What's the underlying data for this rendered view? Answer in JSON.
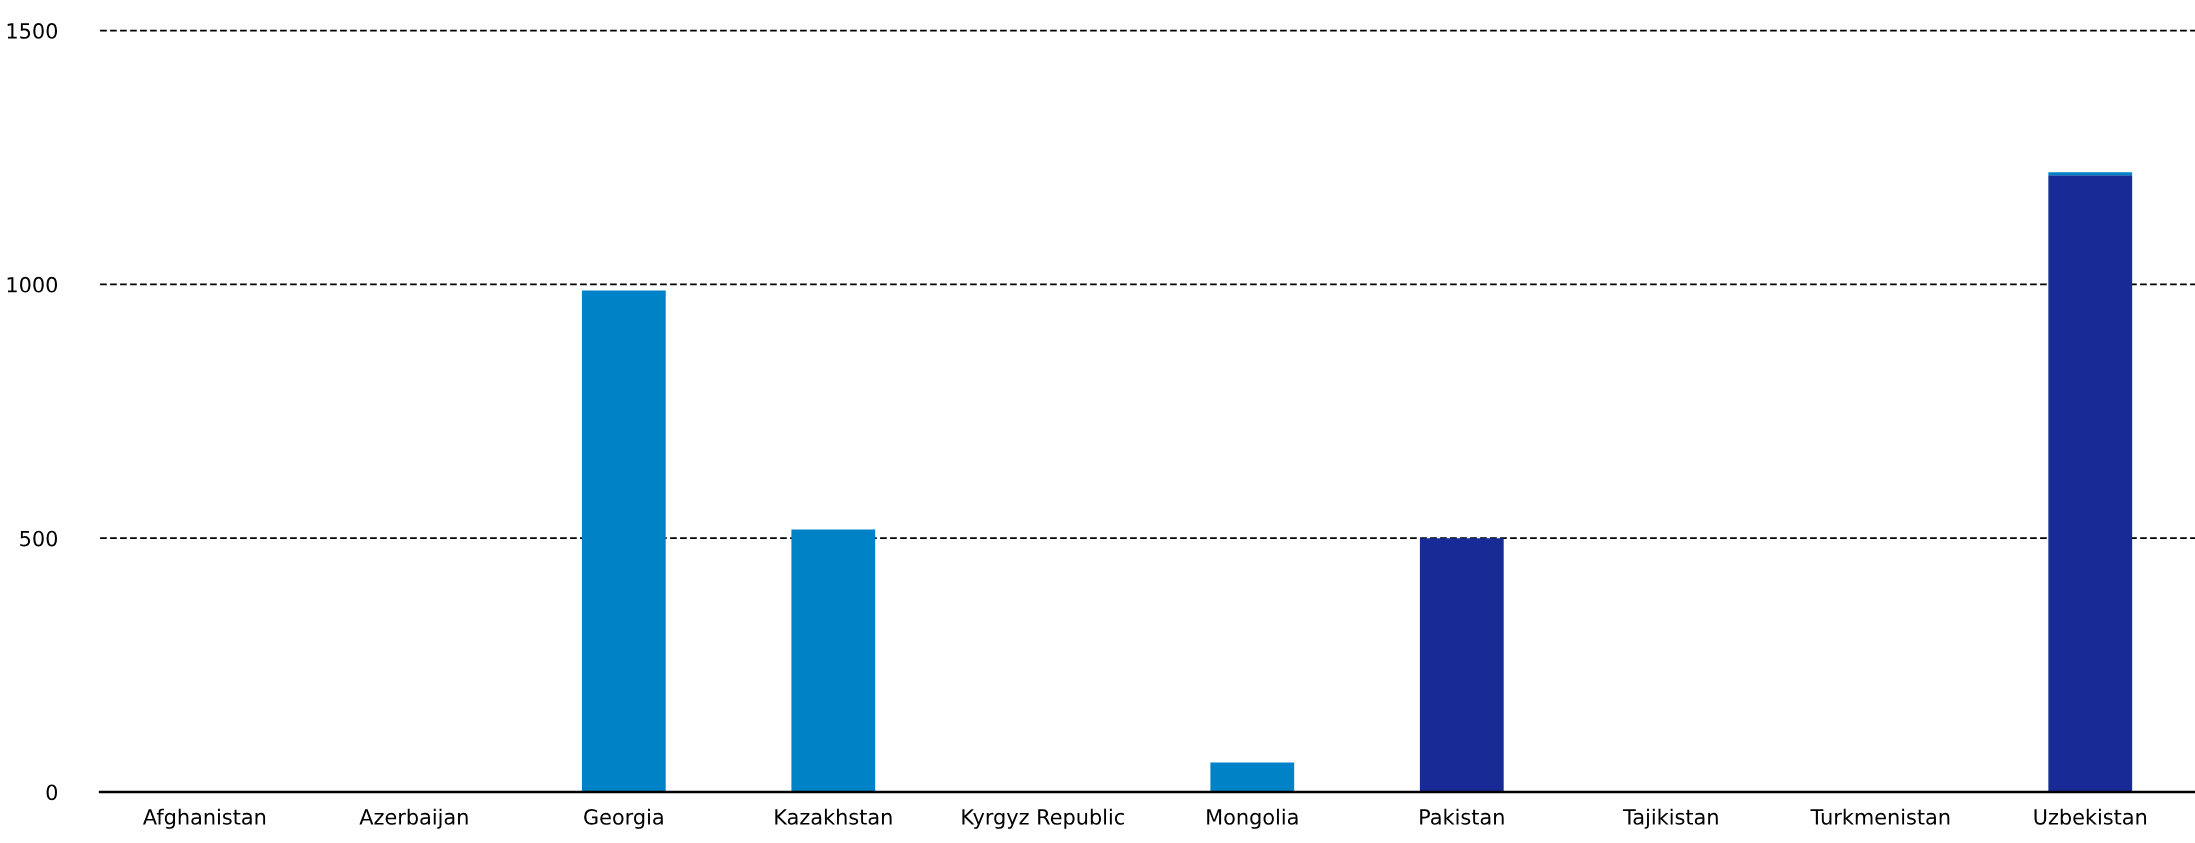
{
  "chart_data": {
    "type": "bar",
    "stacked": true,
    "categories": [
      "Afghanistan",
      "Azerbaijan",
      "Georgia",
      "Kazakhstan",
      "Kyrgyz Republic",
      "Mongolia",
      "Pakistan",
      "Tajikistan",
      "Turkmenistan",
      "Uzbekistan"
    ],
    "series": [
      {
        "color": "#172a96",
        "values": [
          0,
          0,
          0,
          0,
          0,
          0,
          500,
          0,
          0,
          1215
        ]
      },
      {
        "color": "#0083c6",
        "values": [
          0,
          0,
          988,
          517,
          0,
          58,
          0,
          0,
          0,
          6
        ]
      }
    ],
    "ylim": [
      0,
      1500
    ],
    "yticks": [
      0,
      500,
      1000,
      1500
    ],
    "grid": "y"
  }
}
